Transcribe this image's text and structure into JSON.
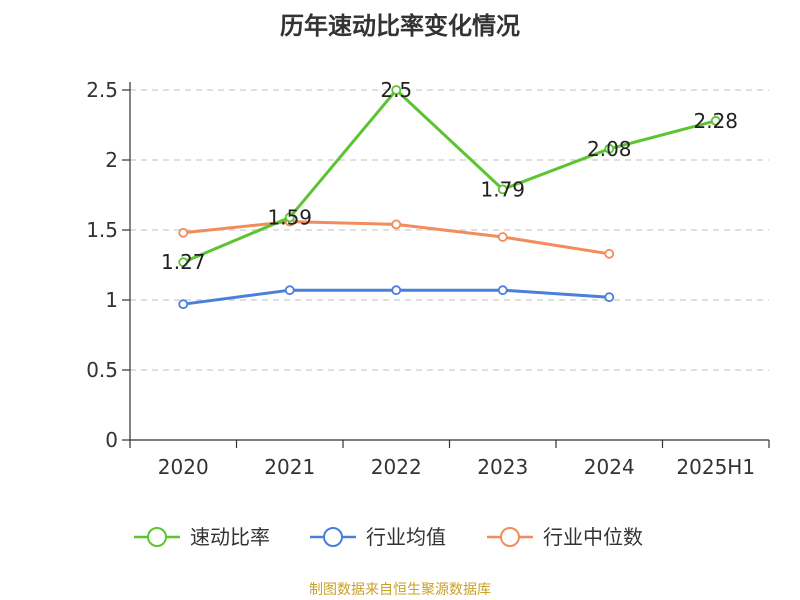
{
  "chart_data": {
    "type": "line",
    "title": "历年速动比率变化情况",
    "categories": [
      "2020",
      "2021",
      "2022",
      "2023",
      "2024",
      "2025H1"
    ],
    "y_ticks": [
      "0",
      "0.5",
      "1",
      "1.5",
      "2",
      "2.5"
    ],
    "ylim": [
      0,
      2.5
    ],
    "grid": "horizontal dashed",
    "legend_position": "bottom",
    "series": [
      {
        "name": "速动比率",
        "color": "#5cc430",
        "values": [
          1.27,
          1.59,
          2.5,
          1.79,
          2.08,
          2.28
        ],
        "labels": [
          "1.27",
          "1.59",
          "2.5",
          "1.79",
          "2.08",
          "2.28"
        ]
      },
      {
        "name": "行业均值",
        "color": "#4a7fdc",
        "values": [
          0.97,
          1.07,
          1.07,
          1.07,
          1.02,
          null
        ]
      },
      {
        "name": "行业中位数",
        "color": "#f28c5b",
        "values": [
          1.48,
          1.56,
          1.54,
          1.45,
          1.33,
          null
        ]
      }
    ]
  },
  "source_note": "制图数据来自恒生聚源数据库"
}
